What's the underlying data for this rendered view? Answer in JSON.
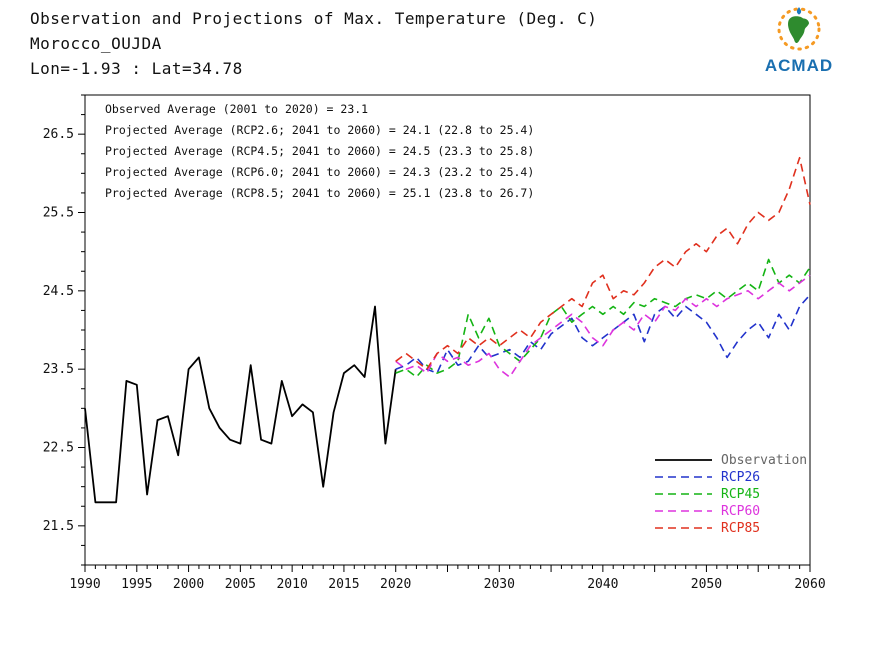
{
  "logo": {
    "text": "ACMAD"
  },
  "chart_data": {
    "type": "line",
    "title": "Observation and Projections of Max. Temperature (Deg. C)",
    "station": "Morocco_OUJDA",
    "location": "Lon=-1.93 : Lat=34.78",
    "xlabel": "",
    "ylabel": "",
    "grid": false,
    "legend_position": "inside-lower-right",
    "xlim": [
      1990,
      2060
    ],
    "ylim": [
      21.0,
      27.0
    ],
    "xticks": [
      1990,
      1995,
      2000,
      2005,
      2010,
      2015,
      2020,
      2030,
      2040,
      2050,
      2060
    ],
    "yticks": [
      21.5,
      22.5,
      23.5,
      24.5,
      25.5,
      26.5
    ],
    "annotations": [
      "Observed Average (2001 to 2020) = 23.1",
      "Projected Average (RCP2.6; 2041 to 2060) = 24.1 (22.8 to 25.4)",
      "Projected Average (RCP4.5; 2041 to 2060) = 24.5 (23.3 to 25.8)",
      "Projected Average (RCP6.0; 2041 to 2060) = 24.3 (23.2 to 25.4)",
      "Projected Average (RCP8.5; 2041 to 2060) = 25.1 (23.8 to 26.7)"
    ],
    "series": [
      {
        "name": "Observation",
        "color": "#000000",
        "label_color": "#666666",
        "dash": "",
        "width": 1.8,
        "start_year": 1990,
        "step": 1,
        "values": [
          23.0,
          21.8,
          21.8,
          21.8,
          23.35,
          23.3,
          21.9,
          22.85,
          22.9,
          22.4,
          23.5,
          23.65,
          23.0,
          22.75,
          22.6,
          22.55,
          23.55,
          22.6,
          22.55,
          23.35,
          22.9,
          23.05,
          22.95,
          22.0,
          22.95,
          23.45,
          23.55,
          23.4,
          24.3,
          22.55,
          23.5
        ]
      },
      {
        "name": "RCP26",
        "color": "#2233cc",
        "label_color": "#2233cc",
        "dash": "8 5",
        "width": 1.6,
        "start_year": 2020,
        "step": 1,
        "values": [
          23.5,
          23.55,
          23.65,
          23.5,
          23.45,
          23.75,
          23.55,
          23.6,
          23.8,
          23.65,
          23.7,
          23.75,
          23.65,
          23.85,
          23.75,
          23.95,
          24.05,
          24.15,
          23.9,
          23.8,
          23.9,
          24.0,
          24.1,
          24.2,
          23.85,
          24.2,
          24.3,
          24.15,
          24.3,
          24.2,
          24.1,
          23.9,
          23.65,
          23.85,
          24.0,
          24.1,
          23.9,
          24.2,
          24.0,
          24.3,
          24.45
        ]
      },
      {
        "name": "RCP45",
        "color": "#14b414",
        "label_color": "#14b414",
        "dash": "8 5",
        "width": 1.6,
        "start_year": 2020,
        "step": 1,
        "values": [
          23.45,
          23.5,
          23.4,
          23.55,
          23.45,
          23.5,
          23.6,
          24.2,
          23.9,
          24.15,
          23.8,
          23.7,
          23.6,
          23.75,
          23.9,
          24.2,
          24.3,
          24.1,
          24.2,
          24.3,
          24.2,
          24.3,
          24.2,
          24.35,
          24.3,
          24.4,
          24.35,
          24.3,
          24.4,
          24.45,
          24.4,
          24.5,
          24.4,
          24.5,
          24.6,
          24.5,
          24.9,
          24.6,
          24.7,
          24.6,
          24.8
        ]
      },
      {
        "name": "RCP60",
        "color": "#dd33dd",
        "label_color": "#dd33dd",
        "dash": "8 5",
        "width": 1.6,
        "start_year": 2020,
        "step": 1,
        "values": [
          23.6,
          23.5,
          23.55,
          23.45,
          23.7,
          23.6,
          23.65,
          23.55,
          23.6,
          23.7,
          23.5,
          23.4,
          23.6,
          23.8,
          23.9,
          24.0,
          24.1,
          24.2,
          24.1,
          23.9,
          23.8,
          24.0,
          24.1,
          24.0,
          24.2,
          24.1,
          24.3,
          24.25,
          24.4,
          24.3,
          24.4,
          24.3,
          24.4,
          24.45,
          24.5,
          24.4,
          24.5,
          24.6,
          24.5,
          24.6,
          24.7
        ]
      },
      {
        "name": "RCP85",
        "color": "#e0301e",
        "label_color": "#e0301e",
        "dash": "8 5",
        "width": 1.6,
        "start_year": 2020,
        "step": 1,
        "values": [
          23.6,
          23.7,
          23.6,
          23.5,
          23.7,
          23.8,
          23.7,
          23.9,
          23.8,
          23.9,
          23.8,
          23.9,
          24.0,
          23.9,
          24.1,
          24.2,
          24.3,
          24.4,
          24.3,
          24.6,
          24.7,
          24.4,
          24.5,
          24.45,
          24.6,
          24.8,
          24.9,
          24.8,
          25.0,
          25.1,
          25.0,
          25.2,
          25.3,
          25.1,
          25.35,
          25.5,
          25.4,
          25.5,
          25.8,
          26.2,
          25.6
        ]
      }
    ]
  }
}
